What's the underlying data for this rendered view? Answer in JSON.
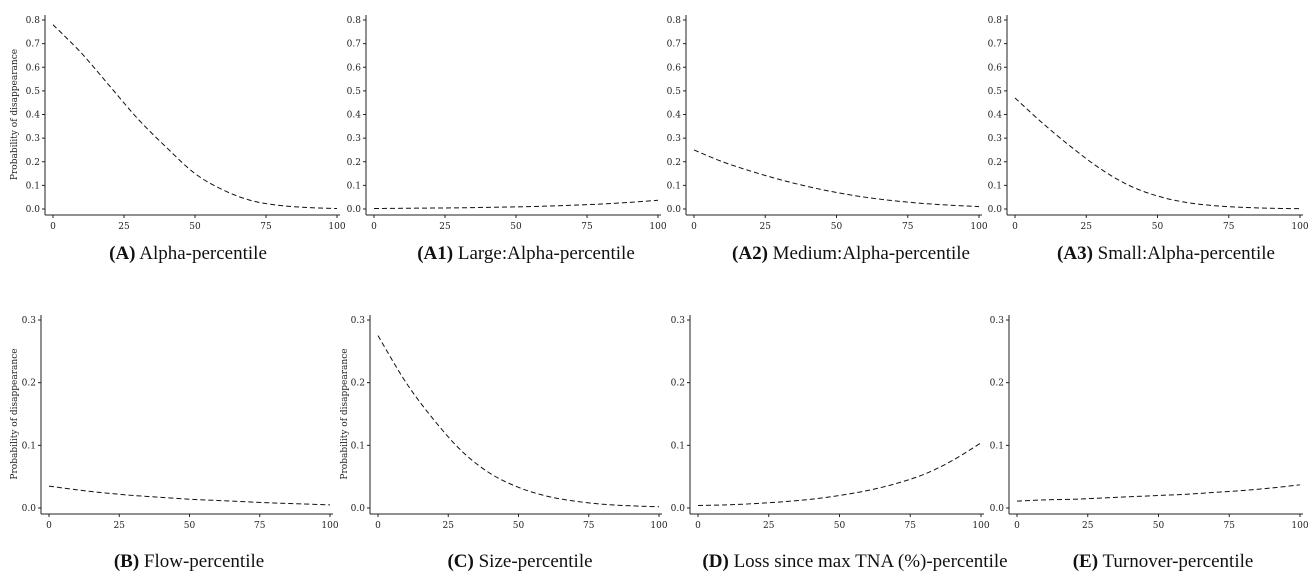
{
  "chart_data": [
    {
      "type": "line",
      "panel_label": "(A)",
      "caption": "Alpha-percentile",
      "ylabel": "Probability of disappearance",
      "xlim": [
        0,
        100
      ],
      "ylim": [
        0,
        0.8
      ],
      "x_ticks": [
        0,
        25,
        50,
        75,
        100
      ],
      "y_ticks": [
        0.0,
        0.1,
        0.2,
        0.3,
        0.4,
        0.5,
        0.6,
        0.7,
        0.8
      ],
      "series": [
        {
          "x": [
            0,
            10,
            20,
            30,
            40,
            50,
            60,
            70,
            80,
            90,
            100
          ],
          "values": [
            0.78,
            0.66,
            0.52,
            0.38,
            0.26,
            0.15,
            0.08,
            0.035,
            0.015,
            0.006,
            0.002
          ],
          "line_style": "dashed"
        }
      ]
    },
    {
      "type": "line",
      "panel_label": "(A1)",
      "caption": "Large:Alpha-percentile",
      "ylabel": "",
      "xlim": [
        0,
        100
      ],
      "ylim": [
        0,
        0.8
      ],
      "x_ticks": [
        0,
        25,
        50,
        75,
        100
      ],
      "y_ticks": [
        0.0,
        0.1,
        0.2,
        0.3,
        0.4,
        0.5,
        0.6,
        0.7,
        0.8
      ],
      "series": [
        {
          "x": [
            0,
            10,
            20,
            30,
            40,
            50,
            60,
            70,
            80,
            90,
            100
          ],
          "values": [
            0.002,
            0.003,
            0.004,
            0.005,
            0.007,
            0.009,
            0.012,
            0.016,
            0.021,
            0.028,
            0.037
          ],
          "line_style": "dashed"
        }
      ]
    },
    {
      "type": "line",
      "panel_label": "(A2)",
      "caption": "Medium:Alpha-percentile",
      "ylabel": "",
      "xlim": [
        0,
        100
      ],
      "ylim": [
        0,
        0.8
      ],
      "x_ticks": [
        0,
        25,
        50,
        75,
        100
      ],
      "y_ticks": [
        0.0,
        0.1,
        0.2,
        0.3,
        0.4,
        0.5,
        0.6,
        0.7,
        0.8
      ],
      "series": [
        {
          "x": [
            0,
            10,
            20,
            30,
            40,
            50,
            60,
            70,
            80,
            90,
            100
          ],
          "values": [
            0.25,
            0.2,
            0.16,
            0.125,
            0.095,
            0.07,
            0.05,
            0.035,
            0.024,
            0.016,
            0.01
          ],
          "line_style": "dashed"
        }
      ]
    },
    {
      "type": "line",
      "panel_label": "(A3)",
      "caption": "Small:Alpha-percentile",
      "ylabel": "",
      "xlim": [
        0,
        100
      ],
      "ylim": [
        0,
        0.8
      ],
      "x_ticks": [
        0,
        25,
        50,
        75,
        100
      ],
      "y_ticks": [
        0.0,
        0.1,
        0.2,
        0.3,
        0.4,
        0.5,
        0.6,
        0.7,
        0.8
      ],
      "series": [
        {
          "x": [
            0,
            10,
            20,
            30,
            40,
            50,
            60,
            70,
            80,
            90,
            100
          ],
          "values": [
            0.47,
            0.36,
            0.26,
            0.17,
            0.1,
            0.055,
            0.028,
            0.014,
            0.007,
            0.003,
            0.0015
          ],
          "line_style": "dashed"
        }
      ]
    },
    {
      "type": "line",
      "panel_label": "(B)",
      "caption": "Flow-percentile",
      "ylabel": "Probability of disappearance",
      "xlim": [
        0,
        100
      ],
      "ylim": [
        0,
        0.3
      ],
      "x_ticks": [
        0,
        25,
        50,
        75,
        100
      ],
      "y_ticks": [
        0.0,
        0.1,
        0.2,
        0.3
      ],
      "series": [
        {
          "x": [
            0,
            10,
            20,
            30,
            40,
            50,
            60,
            70,
            80,
            90,
            100
          ],
          "values": [
            0.035,
            0.029,
            0.024,
            0.02,
            0.017,
            0.014,
            0.012,
            0.01,
            0.008,
            0.0065,
            0.005
          ],
          "line_style": "dashed"
        }
      ]
    },
    {
      "type": "line",
      "panel_label": "(C)",
      "caption": "Size-percentile",
      "ylabel": "Probability of disappearance",
      "xlim": [
        0,
        100
      ],
      "ylim": [
        0,
        0.3
      ],
      "x_ticks": [
        0,
        25,
        50,
        75,
        100
      ],
      "y_ticks": [
        0.0,
        0.1,
        0.2,
        0.3
      ],
      "series": [
        {
          "x": [
            0,
            10,
            20,
            30,
            40,
            50,
            60,
            70,
            80,
            90,
            100
          ],
          "values": [
            0.275,
            0.2,
            0.14,
            0.09,
            0.055,
            0.033,
            0.019,
            0.011,
            0.006,
            0.0035,
            0.002
          ],
          "line_style": "dashed"
        }
      ]
    },
    {
      "type": "line",
      "panel_label": "(D)",
      "caption": "Loss since max TNA (%)-percentile",
      "ylabel": "",
      "xlim": [
        0,
        100
      ],
      "ylim": [
        0,
        0.3
      ],
      "x_ticks": [
        0,
        25,
        50,
        75,
        100
      ],
      "y_ticks": [
        0.0,
        0.1,
        0.2,
        0.3
      ],
      "series": [
        {
          "x": [
            0,
            10,
            20,
            30,
            40,
            50,
            60,
            70,
            80,
            90,
            100
          ],
          "values": [
            0.004,
            0.005,
            0.007,
            0.01,
            0.014,
            0.02,
            0.028,
            0.039,
            0.054,
            0.076,
            0.104
          ],
          "line_style": "dashed"
        }
      ]
    },
    {
      "type": "line",
      "panel_label": "(E)",
      "caption": "Turnover-percentile",
      "ylabel": "",
      "xlim": [
        0,
        100
      ],
      "ylim": [
        0,
        0.3
      ],
      "x_ticks": [
        0,
        25,
        50,
        75,
        100
      ],
      "y_ticks": [
        0.0,
        0.1,
        0.2,
        0.3
      ],
      "series": [
        {
          "x": [
            0,
            10,
            20,
            30,
            40,
            50,
            60,
            70,
            80,
            90,
            100
          ],
          "values": [
            0.011,
            0.013,
            0.014,
            0.016,
            0.018,
            0.02,
            0.022,
            0.025,
            0.028,
            0.032,
            0.037
          ],
          "line_style": "dashed"
        }
      ]
    }
  ]
}
